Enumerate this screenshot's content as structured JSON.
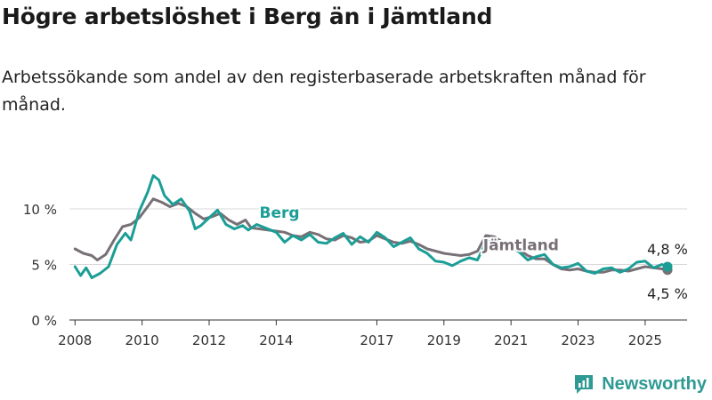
{
  "title": "Högre arbetslöshet i Berg än i Jämtland",
  "subtitle": "Arbetssökande som andel av den registerbaserade arbetskraften månad för månad.",
  "brand": {
    "name": "Newsworthy",
    "icon": "newsworthy-logo-icon"
  },
  "colors": {
    "berg": "#1b9e96",
    "jamtland": "#777076",
    "grid": "#d8d8d8",
    "axis": "#333333"
  },
  "chart_data": {
    "type": "line",
    "xlim": [
      "2007-11",
      "2026-04"
    ],
    "ylim": [
      0,
      12
    ],
    "yticks": [
      0,
      5,
      10
    ],
    "ytick_labels": [
      "0 %",
      "5 %",
      "10 %"
    ],
    "xtick_labels": [
      "2008",
      "2010",
      "2012",
      "2014",
      "2017",
      "2019",
      "2021",
      "2023",
      "2025"
    ],
    "xticks": [
      2008,
      2010,
      2012,
      2014,
      2017,
      2019,
      2021,
      2023,
      2025
    ],
    "grid": true,
    "series": [
      {
        "name": "Jämtland",
        "color": "#777076",
        "end_label": "4,5 %",
        "points": [
          [
            "2008-01",
            6.4
          ],
          [
            "2008-04",
            6.0
          ],
          [
            "2008-07",
            5.8
          ],
          [
            "2008-09",
            5.4
          ],
          [
            "2008-12",
            5.9
          ],
          [
            "2009-03",
            7.2
          ],
          [
            "2009-06",
            8.4
          ],
          [
            "2009-09",
            8.6
          ],
          [
            "2009-12",
            9.2
          ],
          [
            "2010-03",
            10.2
          ],
          [
            "2010-05",
            10.9
          ],
          [
            "2010-08",
            10.6
          ],
          [
            "2010-11",
            10.2
          ],
          [
            "2011-02",
            10.5
          ],
          [
            "2011-05",
            10.2
          ],
          [
            "2011-08",
            9.6
          ],
          [
            "2011-11",
            9.1
          ],
          [
            "2012-02",
            9.3
          ],
          [
            "2012-05",
            9.6
          ],
          [
            "2012-08",
            9.0
          ],
          [
            "2012-11",
            8.6
          ],
          [
            "2013-02",
            9.0
          ],
          [
            "2013-04",
            8.3
          ],
          [
            "2013-07",
            8.2
          ],
          [
            "2013-10",
            8.1
          ],
          [
            "2014-01",
            8.0
          ],
          [
            "2014-04",
            7.9
          ],
          [
            "2014-07",
            7.6
          ],
          [
            "2014-10",
            7.5
          ],
          [
            "2015-01",
            7.9
          ],
          [
            "2015-04",
            7.7
          ],
          [
            "2015-07",
            7.3
          ],
          [
            "2015-10",
            7.2
          ],
          [
            "2016-01",
            7.6
          ],
          [
            "2016-04",
            7.4
          ],
          [
            "2016-07",
            7.0
          ],
          [
            "2016-10",
            7.1
          ],
          [
            "2017-01",
            7.6
          ],
          [
            "2017-04",
            7.3
          ],
          [
            "2017-07",
            7.0
          ],
          [
            "2017-10",
            6.9
          ],
          [
            "2018-01",
            7.1
          ],
          [
            "2018-04",
            6.8
          ],
          [
            "2018-07",
            6.4
          ],
          [
            "2018-10",
            6.2
          ],
          [
            "2019-01",
            6.0
          ],
          [
            "2019-04",
            5.9
          ],
          [
            "2019-07",
            5.8
          ],
          [
            "2019-10",
            5.9
          ],
          [
            "2020-01",
            6.2
          ],
          [
            "2020-04",
            7.6
          ],
          [
            "2020-07",
            7.5
          ],
          [
            "2020-10",
            7.0
          ],
          [
            "2021-01",
            6.8
          ],
          [
            "2021-04",
            6.3
          ],
          [
            "2021-07",
            5.8
          ],
          [
            "2021-10",
            5.5
          ],
          [
            "2022-01",
            5.5
          ],
          [
            "2022-04",
            5.0
          ],
          [
            "2022-07",
            4.6
          ],
          [
            "2022-10",
            4.5
          ],
          [
            "2023-01",
            4.6
          ],
          [
            "2023-04",
            4.4
          ],
          [
            "2023-07",
            4.3
          ],
          [
            "2023-10",
            4.3
          ],
          [
            "2024-01",
            4.5
          ],
          [
            "2024-04",
            4.5
          ],
          [
            "2024-07",
            4.4
          ],
          [
            "2024-10",
            4.6
          ],
          [
            "2025-01",
            4.8
          ],
          [
            "2025-04",
            4.7
          ],
          [
            "2025-07",
            4.6
          ],
          [
            "2025-09",
            4.5
          ]
        ]
      },
      {
        "name": "Berg",
        "color": "#1b9e96",
        "end_label": "4,8 %",
        "points": [
          [
            "2008-01",
            4.8
          ],
          [
            "2008-03",
            4.0
          ],
          [
            "2008-05",
            4.7
          ],
          [
            "2008-07",
            3.8
          ],
          [
            "2008-10",
            4.2
          ],
          [
            "2009-01",
            4.8
          ],
          [
            "2009-04",
            6.8
          ],
          [
            "2009-07",
            7.8
          ],
          [
            "2009-09",
            7.2
          ],
          [
            "2009-12",
            9.8
          ],
          [
            "2010-03",
            11.5
          ],
          [
            "2010-05",
            13.0
          ],
          [
            "2010-07",
            12.6
          ],
          [
            "2010-09",
            11.2
          ],
          [
            "2010-12",
            10.4
          ],
          [
            "2011-03",
            10.9
          ],
          [
            "2011-06",
            9.8
          ],
          [
            "2011-08",
            8.2
          ],
          [
            "2011-10",
            8.5
          ],
          [
            "2012-01",
            9.2
          ],
          [
            "2012-04",
            9.9
          ],
          [
            "2012-07",
            8.6
          ],
          [
            "2012-10",
            8.2
          ],
          [
            "2013-01",
            8.5
          ],
          [
            "2013-03",
            8.1
          ],
          [
            "2013-06",
            8.6
          ],
          [
            "2013-09",
            8.3
          ],
          [
            "2014-01",
            7.9
          ],
          [
            "2014-04",
            7.0
          ],
          [
            "2014-07",
            7.6
          ],
          [
            "2014-10",
            7.2
          ],
          [
            "2015-01",
            7.7
          ],
          [
            "2015-04",
            7.0
          ],
          [
            "2015-07",
            6.9
          ],
          [
            "2015-10",
            7.4
          ],
          [
            "2016-01",
            7.8
          ],
          [
            "2016-04",
            6.8
          ],
          [
            "2016-07",
            7.5
          ],
          [
            "2016-10",
            7.0
          ],
          [
            "2017-01",
            7.9
          ],
          [
            "2017-04",
            7.4
          ],
          [
            "2017-07",
            6.6
          ],
          [
            "2017-10",
            7.0
          ],
          [
            "2018-01",
            7.4
          ],
          [
            "2018-04",
            6.4
          ],
          [
            "2018-07",
            6.0
          ],
          [
            "2018-10",
            5.3
          ],
          [
            "2019-01",
            5.2
          ],
          [
            "2019-04",
            4.9
          ],
          [
            "2019-07",
            5.3
          ],
          [
            "2019-10",
            5.6
          ],
          [
            "2020-01",
            5.4
          ],
          [
            "2020-04",
            7.0
          ],
          [
            "2020-07",
            7.2
          ],
          [
            "2020-10",
            6.8
          ],
          [
            "2021-01",
            6.6
          ],
          [
            "2021-04",
            6.1
          ],
          [
            "2021-07",
            5.4
          ],
          [
            "2021-10",
            5.7
          ],
          [
            "2022-01",
            5.9
          ],
          [
            "2022-04",
            5.0
          ],
          [
            "2022-07",
            4.7
          ],
          [
            "2022-10",
            4.8
          ],
          [
            "2023-01",
            5.1
          ],
          [
            "2023-04",
            4.4
          ],
          [
            "2023-07",
            4.2
          ],
          [
            "2023-10",
            4.6
          ],
          [
            "2024-01",
            4.7
          ],
          [
            "2024-04",
            4.3
          ],
          [
            "2024-07",
            4.6
          ],
          [
            "2024-10",
            5.2
          ],
          [
            "2025-01",
            5.3
          ],
          [
            "2025-04",
            4.7
          ],
          [
            "2025-07",
            5.0
          ],
          [
            "2025-09",
            4.8
          ]
        ]
      }
    ],
    "annotations": [
      {
        "series": "Berg",
        "text": "Berg",
        "x": "2013-07",
        "y": 9.2
      },
      {
        "series": "Jämtland",
        "text": "Jämtland",
        "x": "2020-03",
        "y": 6.3
      }
    ]
  }
}
